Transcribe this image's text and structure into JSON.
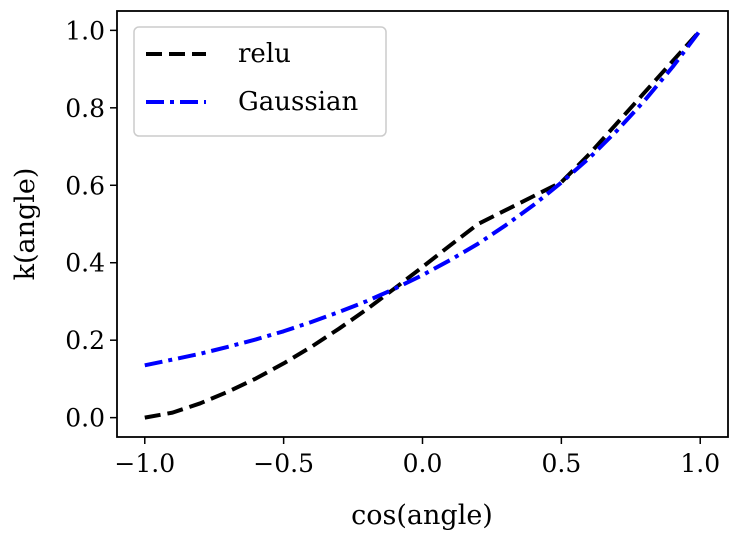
{
  "chart_data": {
    "type": "line",
    "title": "",
    "xlabel": "cos(angle)",
    "ylabel": "k(angle)",
    "xlim": [
      -1.1,
      1.1
    ],
    "ylim": [
      -0.05,
      1.05
    ],
    "x_ticks": [
      -1.0,
      -0.5,
      0.0,
      0.5,
      1.0
    ],
    "x_tick_labels": [
      "−1.0",
      "−0.5",
      "0.0",
      "0.5",
      "1.0"
    ],
    "y_ticks": [
      0.0,
      0.2,
      0.4,
      0.6,
      0.8,
      1.0
    ],
    "y_tick_labels": [
      "0.0",
      "0.2",
      "0.4",
      "0.6",
      "0.8",
      "1.0"
    ],
    "grid": false,
    "legend_position": "top-left",
    "x": [
      -1.0,
      -0.9,
      -0.8,
      -0.7,
      -0.6,
      -0.5,
      -0.4,
      -0.3,
      -0.2,
      -0.1,
      0.0,
      0.1,
      0.2,
      0.3,
      0.4,
      0.5,
      0.6,
      0.7,
      0.8,
      0.9,
      1.0
    ],
    "series": [
      {
        "name": "relu",
        "color": "#000000",
        "style": "dashed",
        "values": [
          0.0,
          0.013,
          0.037,
          0.067,
          0.101,
          0.14,
          0.183,
          0.23,
          0.28,
          0.334,
          0.389,
          0.445,
          0.5,
          0.536,
          0.572,
          0.608,
          0.68,
          0.76,
          0.84,
          0.92,
          1.0
        ]
      },
      {
        "name": "Gaussian",
        "color": "#0000ff",
        "style": "dashdot",
        "values": [
          0.135,
          0.15,
          0.165,
          0.183,
          0.202,
          0.223,
          0.247,
          0.273,
          0.301,
          0.333,
          0.368,
          0.407,
          0.449,
          0.497,
          0.549,
          0.607,
          0.67,
          0.741,
          0.819,
          0.905,
          1.0
        ]
      }
    ]
  }
}
